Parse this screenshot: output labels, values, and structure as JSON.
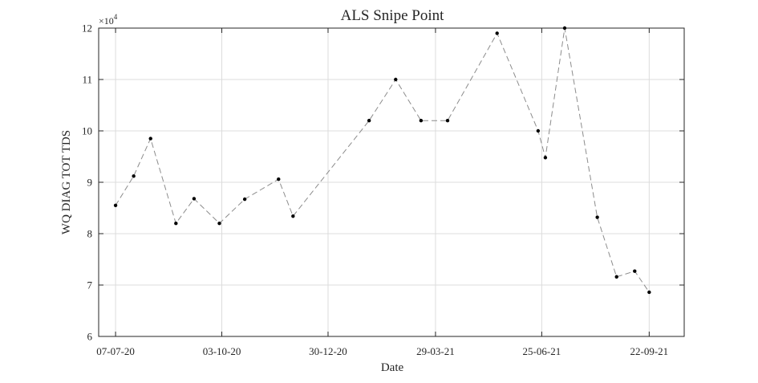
{
  "chart_data": {
    "type": "line",
    "title": "ALS Snipe Point",
    "xlabel": "Date",
    "ylabel": "WQ DIAG TOT TDS",
    "y_exponent_label": "×10",
    "y_exponent_power": "4",
    "x_tick_labels": [
      "07-07-20",
      "03-10-20",
      "30-12-20",
      "29-03-21",
      "25-06-21",
      "22-09-21"
    ],
    "x_tick_dates": [
      "2020-07-07",
      "2020-10-03",
      "2020-12-30",
      "2021-03-29",
      "2021-06-25",
      "2021-09-22"
    ],
    "x_range": [
      "2020-06-23",
      "2021-10-21"
    ],
    "y_tick_labels": [
      "6",
      "7",
      "8",
      "9",
      "10",
      "11",
      "12"
    ],
    "y_tick_values": [
      60000,
      70000,
      80000,
      90000,
      100000,
      110000,
      120000
    ],
    "ylim": [
      60000,
      120000
    ],
    "grid": true,
    "series": [
      {
        "line_style": "dashed",
        "line_color": "#8c8c8c",
        "marker_color": "#000000",
        "points": [
          {
            "x": "2020-07-07",
            "y": 85500
          },
          {
            "x": "2020-07-22",
            "y": 91200
          },
          {
            "x": "2020-08-05",
            "y": 98500
          },
          {
            "x": "2020-08-26",
            "y": 82000
          },
          {
            "x": "2020-09-10",
            "y": 86800
          },
          {
            "x": "2020-10-01",
            "y": 82000
          },
          {
            "x": "2020-10-22",
            "y": 86700
          },
          {
            "x": "2020-11-19",
            "y": 90600
          },
          {
            "x": "2020-12-01",
            "y": 83400
          },
          {
            "x": "2021-02-02",
            "y": 102000
          },
          {
            "x": "2021-02-24",
            "y": 110000
          },
          {
            "x": "2021-03-17",
            "y": 102000
          },
          {
            "x": "2021-04-08",
            "y": 102000
          },
          {
            "x": "2021-05-19",
            "y": 119000
          },
          {
            "x": "2021-06-22",
            "y": 100000
          },
          {
            "x": "2021-06-28",
            "y": 94800
          },
          {
            "x": "2021-07-14",
            "y": 120000
          },
          {
            "x": "2021-08-10",
            "y": 83200
          },
          {
            "x": "2021-08-26",
            "y": 71600
          },
          {
            "x": "2021-09-10",
            "y": 72700
          },
          {
            "x": "2021-09-22",
            "y": 68600
          }
        ]
      }
    ]
  }
}
